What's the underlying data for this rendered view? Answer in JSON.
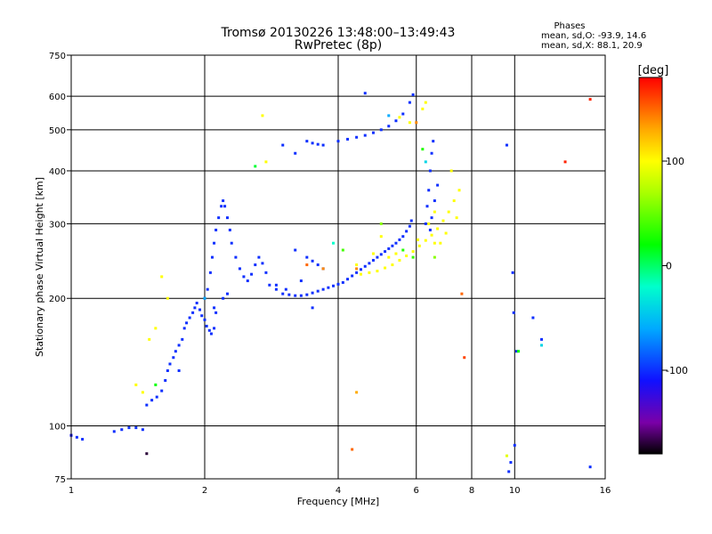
{
  "chart_data": {
    "type": "scatter",
    "title": "Tromsø 20130226 13:48:00–13:49:43",
    "subtitle": "RwPretec (8p)",
    "xlabel": "Frequency [MHz]",
    "ylabel": "Stationary phase Virtual Height [km]",
    "x_scale": "log",
    "y_scale": "log",
    "xlim": [
      1,
      16
    ],
    "ylim": [
      75,
      750
    ],
    "x_ticks": [
      {
        "value": 1,
        "label": "1"
      },
      {
        "value": 2,
        "label": "2"
      },
      {
        "value": 4,
        "label": "4"
      },
      {
        "value": 6,
        "label": "6"
      },
      {
        "value": 8,
        "label": "8"
      },
      {
        "value": 10,
        "label": "10"
      },
      {
        "value": 16,
        "label": "16"
      }
    ],
    "x_grid": [
      2,
      4,
      6,
      8,
      10
    ],
    "y_ticks": [
      {
        "value": 75,
        "label": "75"
      },
      {
        "value": 100,
        "label": "100"
      },
      {
        "value": 200,
        "label": "200"
      },
      {
        "value": 300,
        "label": "300"
      },
      {
        "value": 400,
        "label": "400"
      },
      {
        "value": 500,
        "label": "500"
      },
      {
        "value": 600,
        "label": "600"
      },
      {
        "value": 750,
        "label": "750"
      }
    ],
    "y_grid": [
      100,
      200,
      300,
      400,
      500,
      600
    ],
    "grid": true,
    "info": {
      "heading": "Phases",
      "line1": "mean, sd,O: -93.9, 14.6",
      "line2": "mean, sd,X:  88.1, 20.9"
    },
    "colorbar": {
      "label": "[deg]",
      "range": [
        -180,
        180
      ],
      "ticks": [
        {
          "value": 100,
          "label": "100"
        },
        {
          "value": 0,
          "label": "0"
        },
        {
          "value": -100,
          "label": "-100"
        }
      ],
      "stops": [
        {
          "value": -180,
          "color": "#000000"
        },
        {
          "value": -150,
          "color": "#7a00a8"
        },
        {
          "value": -110,
          "color": "#1010ff"
        },
        {
          "value": -60,
          "color": "#00aaff"
        },
        {
          "value": -20,
          "color": "#00ffcc"
        },
        {
          "value": 20,
          "color": "#00ff00"
        },
        {
          "value": 70,
          "color": "#aaff00"
        },
        {
          "value": 100,
          "color": "#ffff00"
        },
        {
          "value": 130,
          "color": "#ffaa00"
        },
        {
          "value": 180,
          "color": "#ff0000"
        }
      ]
    },
    "series": [
      {
        "description": "O-mode trace (phase ≈ -100 deg)",
        "phase": -100,
        "points": [
          [
            1.0,
            95
          ],
          [
            1.03,
            94
          ],
          [
            1.06,
            93
          ],
          [
            1.25,
            97
          ],
          [
            1.3,
            98
          ],
          [
            1.35,
            99
          ],
          [
            1.4,
            99
          ],
          [
            1.45,
            98
          ],
          [
            1.48,
            112
          ],
          [
            1.52,
            115
          ],
          [
            1.56,
            117
          ],
          [
            1.6,
            121
          ],
          [
            1.63,
            128
          ],
          [
            1.65,
            135
          ],
          [
            1.67,
            140
          ],
          [
            1.7,
            145
          ],
          [
            1.72,
            150
          ],
          [
            1.75,
            155
          ],
          [
            1.78,
            160
          ],
          [
            1.8,
            170
          ],
          [
            1.82,
            175
          ],
          [
            1.85,
            180
          ],
          [
            1.88,
            185
          ],
          [
            1.9,
            190
          ],
          [
            1.92,
            195
          ],
          [
            1.95,
            188
          ],
          [
            1.97,
            182
          ],
          [
            2.0,
            178
          ],
          [
            2.02,
            172
          ],
          [
            2.05,
            168
          ],
          [
            2.07,
            165
          ],
          [
            2.1,
            170
          ],
          [
            2.12,
            185
          ],
          [
            2.0,
            200
          ],
          [
            2.03,
            210
          ],
          [
            2.06,
            230
          ],
          [
            2.08,
            250
          ],
          [
            2.1,
            270
          ],
          [
            2.12,
            290
          ],
          [
            2.15,
            310
          ],
          [
            2.18,
            330
          ],
          [
            2.2,
            340
          ],
          [
            2.22,
            330
          ],
          [
            2.25,
            310
          ],
          [
            2.28,
            290
          ],
          [
            2.3,
            270
          ],
          [
            2.35,
            250
          ],
          [
            2.4,
            235
          ],
          [
            2.45,
            225
          ],
          [
            2.5,
            220
          ],
          [
            2.55,
            228
          ],
          [
            2.6,
            240
          ],
          [
            2.65,
            250
          ],
          [
            2.7,
            242
          ],
          [
            2.75,
            230
          ],
          [
            2.8,
            215
          ],
          [
            2.9,
            210
          ],
          [
            3.0,
            205
          ],
          [
            3.1,
            204
          ],
          [
            3.2,
            203
          ],
          [
            3.3,
            203
          ],
          [
            3.4,
            204
          ],
          [
            3.5,
            206
          ],
          [
            3.6,
            208
          ],
          [
            3.7,
            210
          ],
          [
            3.8,
            212
          ],
          [
            3.9,
            214
          ],
          [
            4.0,
            216
          ],
          [
            4.1,
            218
          ],
          [
            4.2,
            222
          ],
          [
            4.3,
            226
          ],
          [
            4.4,
            230
          ],
          [
            4.5,
            234
          ],
          [
            4.6,
            238
          ],
          [
            4.7,
            242
          ],
          [
            4.8,
            246
          ],
          [
            4.9,
            250
          ],
          [
            5.0,
            254
          ],
          [
            5.1,
            258
          ],
          [
            5.2,
            262
          ],
          [
            5.3,
            266
          ],
          [
            5.4,
            270
          ],
          [
            5.5,
            275
          ],
          [
            5.6,
            280
          ],
          [
            5.7,
            288
          ],
          [
            5.8,
            296
          ],
          [
            5.85,
            305
          ],
          [
            3.4,
            250
          ],
          [
            3.5,
            245
          ],
          [
            3.6,
            240
          ],
          [
            3.7,
            235
          ],
          [
            3.2,
            260
          ],
          [
            6.3,
            300
          ],
          [
            6.35,
            330
          ],
          [
            6.4,
            360
          ],
          [
            6.45,
            400
          ],
          [
            6.5,
            440
          ],
          [
            6.55,
            470
          ],
          [
            6.45,
            290
          ],
          [
            6.5,
            310
          ],
          [
            6.6,
            340
          ],
          [
            6.7,
            370
          ],
          [
            3.4,
            470
          ],
          [
            3.5,
            465
          ],
          [
            3.6,
            462
          ],
          [
            3.7,
            460
          ],
          [
            4.0,
            470
          ],
          [
            4.2,
            475
          ],
          [
            4.4,
            480
          ],
          [
            4.6,
            485
          ],
          [
            4.8,
            492
          ],
          [
            5.0,
            500
          ],
          [
            5.2,
            510
          ],
          [
            5.4,
            525
          ],
          [
            5.6,
            545
          ],
          [
            5.8,
            580
          ],
          [
            5.9,
            605
          ],
          [
            4.6,
            610
          ],
          [
            3.2,
            440
          ],
          [
            3.0,
            460
          ],
          [
            2.1,
            190
          ],
          [
            2.2,
            200
          ],
          [
            2.25,
            205
          ],
          [
            9.6,
            460
          ],
          [
            9.9,
            230
          ],
          [
            9.95,
            185
          ],
          [
            10.1,
            150
          ],
          [
            11.0,
            180
          ],
          [
            11.5,
            160
          ],
          [
            14.8,
            80
          ],
          [
            10.0,
            90
          ],
          [
            9.7,
            78
          ],
          [
            9.8,
            82
          ],
          [
            1.75,
            135
          ],
          [
            3.5,
            190
          ],
          [
            3.3,
            220
          ],
          [
            2.9,
            215
          ],
          [
            3.05,
            210
          ]
        ]
      },
      {
        "description": "X-mode trace (phase ≈ +100 deg)",
        "phase": 100,
        "points": [
          [
            4.5,
            228
          ],
          [
            4.7,
            230
          ],
          [
            4.9,
            232
          ],
          [
            5.1,
            236
          ],
          [
            5.3,
            240
          ],
          [
            5.5,
            246
          ],
          [
            5.7,
            252
          ],
          [
            5.9,
            258
          ],
          [
            6.1,
            266
          ],
          [
            6.3,
            274
          ],
          [
            6.5,
            282
          ],
          [
            6.7,
            292
          ],
          [
            6.9,
            305
          ],
          [
            7.1,
            320
          ],
          [
            7.3,
            340
          ],
          [
            7.5,
            360
          ],
          [
            6.4,
            300
          ],
          [
            6.6,
            320
          ],
          [
            6.8,
            270
          ],
          [
            7.0,
            285
          ],
          [
            5.2,
            250
          ],
          [
            5.4,
            255
          ],
          [
            6.2,
            560
          ],
          [
            6.3,
            580
          ],
          [
            5.8,
            520
          ],
          [
            5.5,
            535
          ],
          [
            2.7,
            540
          ],
          [
            2.75,
            420
          ],
          [
            1.55,
            170
          ],
          [
            1.5,
            160
          ],
          [
            1.45,
            120
          ],
          [
            1.4,
            125
          ],
          [
            1.6,
            225
          ],
          [
            1.65,
            200
          ],
          [
            4.4,
            240
          ],
          [
            7.2,
            400
          ],
          [
            5.0,
            280
          ],
          [
            6.05,
            275
          ],
          [
            4.8,
            255
          ],
          [
            6.6,
            270
          ],
          [
            7.4,
            310
          ]
        ]
      },
      {
        "description": "Scattered points, mixed phase",
        "points": [
          [
            1.0,
            95,
            -110
          ],
          [
            1.55,
            125,
            20
          ],
          [
            2.6,
            410,
            10
          ],
          [
            3.9,
            270,
            -20
          ],
          [
            4.1,
            260,
            40
          ],
          [
            4.3,
            88,
            150
          ],
          [
            4.4,
            235,
            140
          ],
          [
            5.0,
            300,
            60
          ],
          [
            5.6,
            260,
            30
          ],
          [
            5.9,
            250,
            35
          ],
          [
            6.0,
            520,
            140
          ],
          [
            6.2,
            450,
            30
          ],
          [
            6.3,
            420,
            -40
          ],
          [
            6.6,
            250,
            60
          ],
          [
            7.6,
            205,
            150
          ],
          [
            7.7,
            145,
            160
          ],
          [
            13.0,
            420,
            170
          ],
          [
            14.8,
            590,
            170
          ],
          [
            10.2,
            150,
            20
          ],
          [
            11.5,
            155,
            -40
          ],
          [
            3.4,
            240,
            150
          ],
          [
            3.7,
            235,
            140
          ],
          [
            2.0,
            200,
            -60
          ],
          [
            5.2,
            540,
            -60
          ],
          [
            1.48,
            86,
            -170
          ],
          [
            9.6,
            85,
            90
          ],
          [
            4.4,
            120,
            130
          ]
        ]
      }
    ]
  }
}
